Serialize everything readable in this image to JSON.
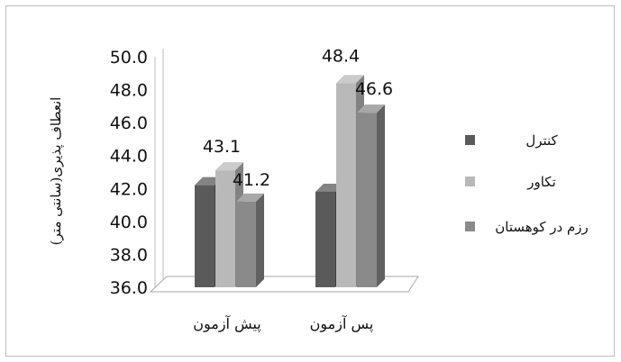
{
  "chart_data": {
    "type": "bar",
    "title": "",
    "xlabel": "",
    "ylabel": "انعطاف پذیری(سانتی متر)",
    "categories": [
      "پیش آزمون",
      "پس آزمون"
    ],
    "series": [
      {
        "name": "کنترل",
        "values": [
          42.2,
          41.8
        ]
      },
      {
        "name": "تکاور",
        "values": [
          43.1,
          48.4
        ]
      },
      {
        "name": "رزم در کوهستان",
        "values": [
          41.2,
          46.6
        ]
      }
    ],
    "data_labels": [
      {
        "series": 1,
        "category": 0,
        "text": "43.1"
      },
      {
        "series": 2,
        "category": 0,
        "text": "41.2"
      },
      {
        "series": 1,
        "category": 1,
        "text": "48.4"
      },
      {
        "series": 2,
        "category": 1,
        "text": "46.6"
      }
    ],
    "yticks": [
      "36.0",
      "38.0",
      "40.0",
      "42.0",
      "44.0",
      "46.0",
      "48.0",
      "50.0"
    ],
    "ylim": [
      36,
      50
    ],
    "grid": false,
    "legend_position": "right",
    "colors": [
      "#5a5a5a",
      "#b9b9b9",
      "#8a8a8a"
    ]
  }
}
